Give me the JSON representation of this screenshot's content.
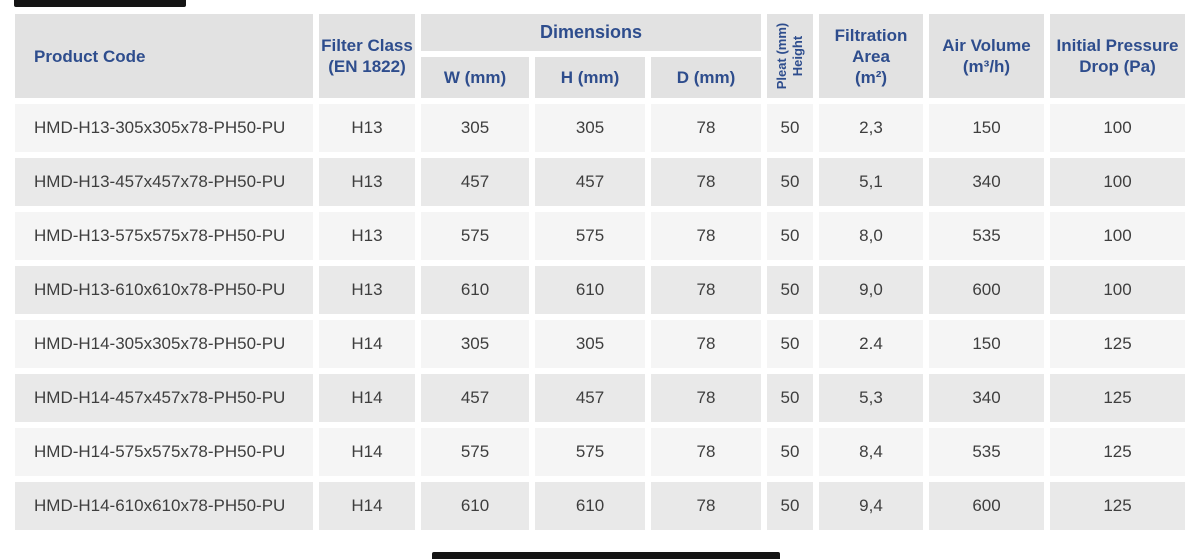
{
  "colors": {
    "header_text": "#2e4d8d",
    "body_text": "#3e3e3e",
    "header_bg": "#e2e2e2",
    "row_light_bg": "#f5f5f5",
    "row_dark_bg": "#e9e9e9",
    "edge_bar": "#141414"
  },
  "table": {
    "headers": {
      "product_code": "Product Code",
      "filter_class_line1": "Filter Class",
      "filter_class_line2": "(EN 1822)",
      "dimensions_group": "Dimensions",
      "w": "W (mm)",
      "h": "H (mm)",
      "d": "D (mm)",
      "pleat_line1": "Pleat (mm)",
      "pleat_line2": "Height",
      "filtration_line1": "Filtration",
      "filtration_line2": "Area",
      "filtration_line3": "(m²)",
      "air_line1": "Air Volume",
      "air_line2": "(m³/h)",
      "pressure_line1": "Initial Pressure",
      "pressure_line2": "Drop (Pa)"
    },
    "rows": [
      {
        "code": "HMD-H13-305x305x78-PH50-PU",
        "filter_class": "H13",
        "w": "305",
        "h": "305",
        "d": "78",
        "pleat": "50",
        "area": "2,3",
        "air_volume": "150",
        "pressure_drop": "100"
      },
      {
        "code": "HMD-H13-457x457x78-PH50-PU",
        "filter_class": "H13",
        "w": "457",
        "h": "457",
        "d": "78",
        "pleat": "50",
        "area": "5,1",
        "air_volume": "340",
        "pressure_drop": "100"
      },
      {
        "code": "HMD-H13-575x575x78-PH50-PU",
        "filter_class": "H13",
        "w": "575",
        "h": "575",
        "d": "78",
        "pleat": "50",
        "area": "8,0",
        "air_volume": "535",
        "pressure_drop": "100"
      },
      {
        "code": "HMD-H13-610x610x78-PH50-PU",
        "filter_class": "H13",
        "w": "610",
        "h": "610",
        "d": "78",
        "pleat": "50",
        "area": "9,0",
        "air_volume": "600",
        "pressure_drop": "100"
      },
      {
        "code": "HMD-H14-305x305x78-PH50-PU",
        "filter_class": "H14",
        "w": "305",
        "h": "305",
        "d": "78",
        "pleat": "50",
        "area": "2.4",
        "air_volume": "150",
        "pressure_drop": "125"
      },
      {
        "code": "HMD-H14-457x457x78-PH50-PU",
        "filter_class": "H14",
        "w": "457",
        "h": "457",
        "d": "78",
        "pleat": "50",
        "area": "5,3",
        "air_volume": "340",
        "pressure_drop": "125"
      },
      {
        "code": "HMD-H14-575x575x78-PH50-PU",
        "filter_class": "H14",
        "w": "575",
        "h": "575",
        "d": "78",
        "pleat": "50",
        "area": "8,4",
        "air_volume": "535",
        "pressure_drop": "125"
      },
      {
        "code": "HMD-H14-610x610x78-PH50-PU",
        "filter_class": "H14",
        "w": "610",
        "h": "610",
        "d": "78",
        "pleat": "50",
        "area": "9,4",
        "air_volume": "600",
        "pressure_drop": "125"
      }
    ]
  }
}
